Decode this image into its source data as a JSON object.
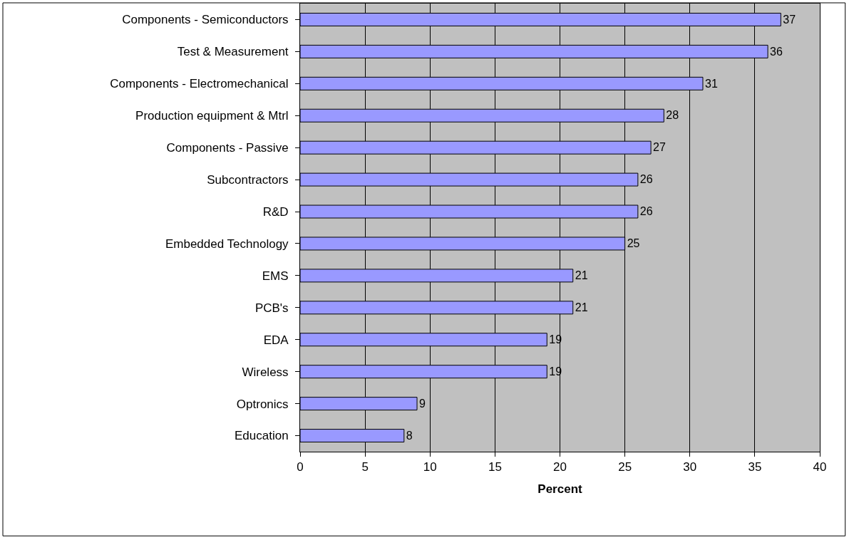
{
  "chart_data": {
    "type": "bar",
    "orientation": "horizontal",
    "xlabel": "Percent",
    "categories": [
      "Components - Semiconductors",
      "Test & Measurement",
      "Components - Electromechanical",
      "Production equipment & Mtrl",
      "Components - Passive",
      "Subcontractors",
      "R&D",
      "Embedded Technology",
      "EMS",
      "PCB's",
      "EDA",
      "Wireless",
      "Optronics",
      "Education"
    ],
    "values": [
      37,
      36,
      31,
      28,
      27,
      26,
      26,
      25,
      21,
      21,
      19,
      19,
      9,
      8
    ],
    "color": "#9999ff",
    "xlim": [
      0,
      40
    ],
    "xticks": [
      0,
      5,
      10,
      15,
      20,
      25,
      30,
      35,
      40
    ],
    "grid": "x",
    "data_labels": true,
    "legend": false
  }
}
